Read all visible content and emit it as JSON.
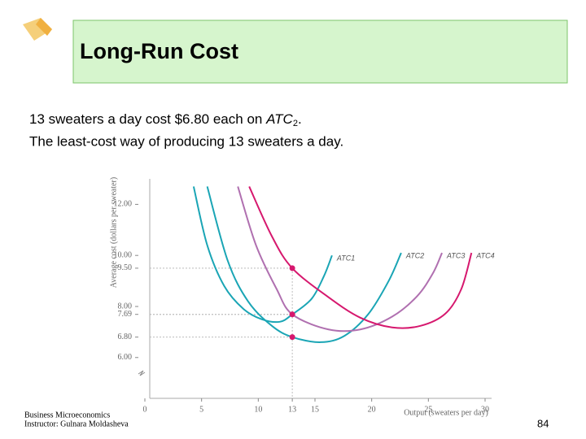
{
  "slide": {
    "title": "Long-Run Cost",
    "line1": [
      "13 sweaters a day cost $6.80 each on ",
      "ATC",
      "2",
      "."
    ],
    "line2": "The least-cost way of producing 13 sweaters a day.",
    "footer": [
      "Business Microeconomics",
      "Instructor: Gulnara Moldasheva"
    ],
    "page_number": "84"
  },
  "chart_data": {
    "type": "line",
    "x_label": "Output (sweaters per day)",
    "y_label": "Average cost (dollars per sweater)",
    "xlim": [
      0,
      30
    ],
    "ylim": [
      4.4,
      13
    ],
    "xticks": [
      0,
      5,
      10,
      13,
      15,
      20,
      25,
      30
    ],
    "yticks": [
      {
        "value": 12,
        "label": "12.00"
      },
      {
        "value": 10,
        "label": "10.00"
      },
      {
        "value": 9.5,
        "label": "9.50"
      },
      {
        "value": 8,
        "label": "8.00"
      },
      {
        "value": 7.69,
        "label": "7.69"
      },
      {
        "value": 6.8,
        "label": "6.80"
      },
      {
        "value": 6,
        "label": "6.00"
      }
    ],
    "highlight_x": 13,
    "highlight_color": "#d6186e",
    "series": [
      {
        "name": "ATC1",
        "color": "#1aa5b5",
        "x": [
          4.3,
          5.5,
          7,
          8.7,
          10.3,
          11.9,
          13,
          14.7,
          15.8,
          16.5
        ],
        "values": [
          12.7,
          10.4,
          8.8,
          7.9,
          7.5,
          7.4,
          7.69,
          8.3,
          9.2,
          10.0
        ]
      },
      {
        "name": "ATC2",
        "color": "#1aa5b5",
        "x": [
          5.5,
          7.3,
          9.1,
          11.2,
          13,
          15.5,
          17.6,
          19.7,
          21.5,
          22.6
        ],
        "values": [
          12.7,
          9.8,
          8.2,
          7.24,
          6.8,
          6.6,
          6.85,
          7.7,
          9.0,
          10.1
        ]
      },
      {
        "name": "ATC3",
        "color": "#b070b0",
        "x": [
          8.2,
          9.8,
          11.6,
          13,
          16.2,
          19,
          21.8,
          24,
          25.4,
          26.2
        ],
        "values": [
          12.7,
          10.4,
          8.7,
          7.69,
          7.1,
          7.1,
          7.6,
          8.4,
          9.3,
          10.1
        ]
      },
      {
        "name": "ATC4",
        "color": "#d6186e",
        "x": [
          9.2,
          11.2,
          13,
          16.2,
          19,
          21.8,
          24.3,
          26.5,
          27.9,
          28.8
        ],
        "values": [
          12.7,
          10.75,
          9.5,
          8.36,
          7.56,
          7.18,
          7.24,
          7.72,
          8.68,
          10.1
        ]
      }
    ]
  }
}
